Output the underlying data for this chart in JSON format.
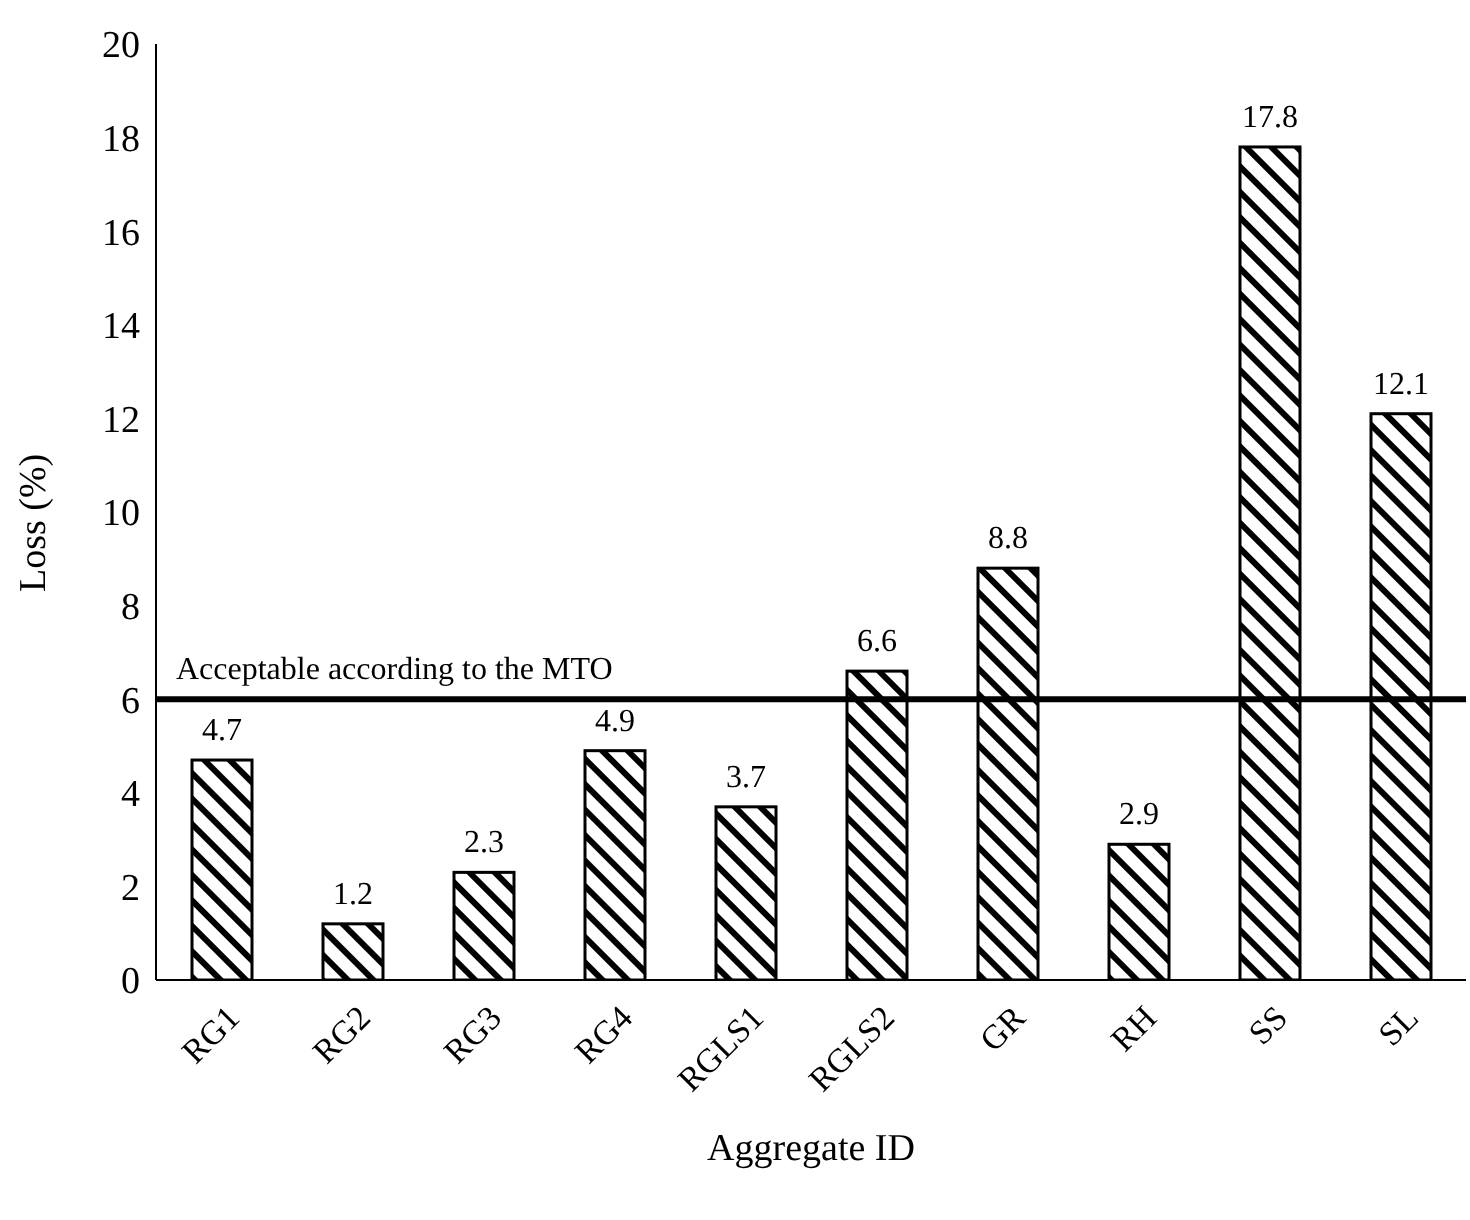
{
  "chart_data": {
    "type": "bar",
    "xlabel": "Aggregate ID",
    "ylabel": "Loss (%)",
    "categories": [
      "RG1",
      "RG2",
      "RG3",
      "RG4",
      "RGLS1",
      "RGLS2",
      "GR",
      "RH",
      "SS",
      "SL"
    ],
    "values": [
      4.7,
      1.2,
      2.3,
      4.9,
      3.7,
      6.6,
      8.8,
      2.9,
      17.8,
      12.1
    ],
    "color": "#000000",
    "ylim": [
      0,
      20
    ],
    "yticks": [
      0,
      2,
      4,
      6,
      8,
      10,
      12,
      14,
      16,
      18,
      20
    ],
    "grid": false,
    "data_labels": true,
    "ref_lines": [
      {
        "axis": "y",
        "value": 6,
        "label": "Acceptable according to the MTO",
        "color": "#000000"
      }
    ]
  }
}
